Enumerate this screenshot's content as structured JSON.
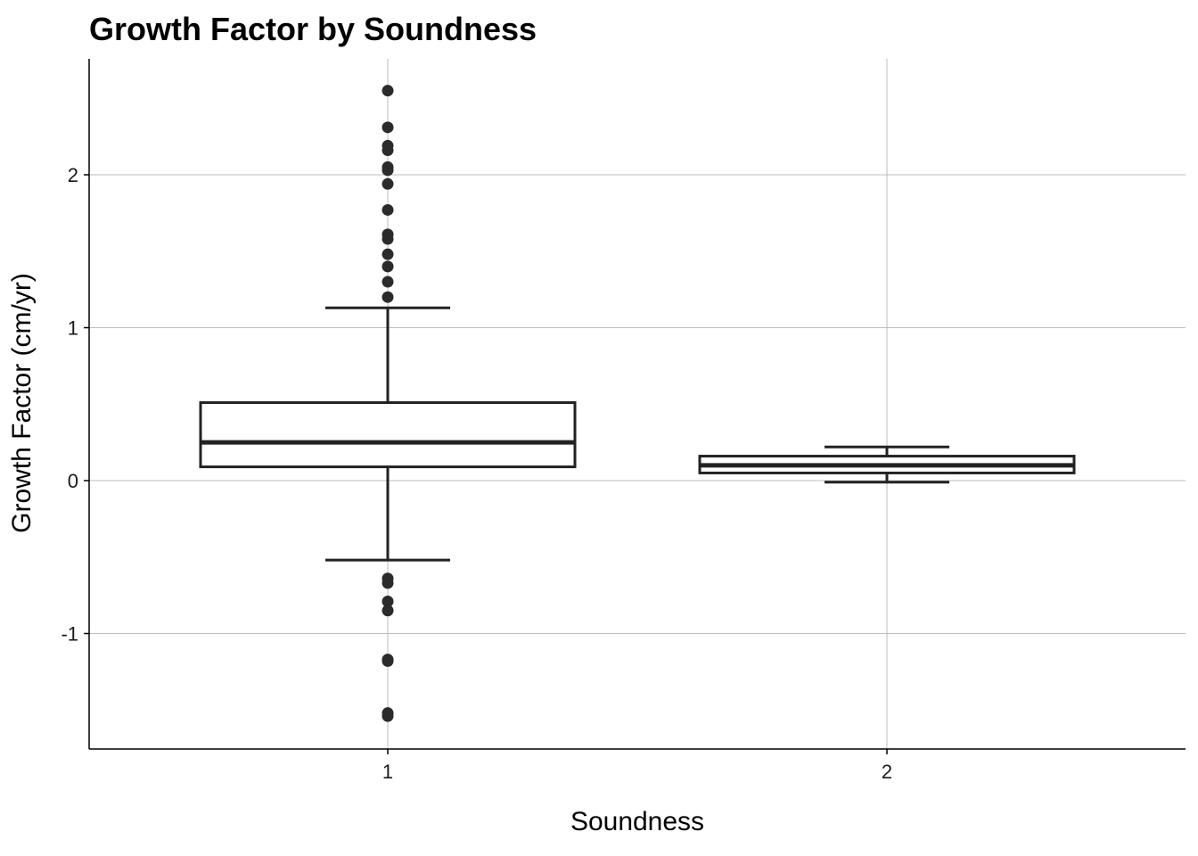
{
  "chart_data": {
    "type": "box",
    "title": "Growth Factor by Soundness",
    "xlabel": "Soundness",
    "ylabel": "Growth Factor (cm/yr)",
    "categories": [
      "1",
      "2"
    ],
    "ylim": [
      -1.75,
      2.75
    ],
    "yticks": [
      -1,
      0,
      1,
      2
    ],
    "ytick_labels": [
      "-1",
      "0",
      "1",
      "2"
    ],
    "grid": true,
    "boxes": [
      {
        "category": "1",
        "whisker_low": -0.52,
        "q1": 0.09,
        "median": 0.25,
        "q3": 0.51,
        "whisker_high": 1.13,
        "outliers": [
          2.55,
          2.31,
          2.19,
          2.16,
          2.05,
          2.03,
          1.94,
          1.77,
          1.61,
          1.58,
          1.48,
          1.4,
          1.3,
          1.2,
          -0.64,
          -0.67,
          -0.79,
          -0.85,
          -1.17,
          -1.18,
          -1.52,
          -1.54
        ]
      },
      {
        "category": "2",
        "whisker_low": -0.01,
        "q1": 0.05,
        "median": 0.1,
        "q3": 0.16,
        "whisker_high": 0.22,
        "outliers": []
      }
    ],
    "colors": {
      "box_stroke": "#222222",
      "outlier": "#2b2b2b",
      "grid": "#bdbdbd"
    }
  }
}
